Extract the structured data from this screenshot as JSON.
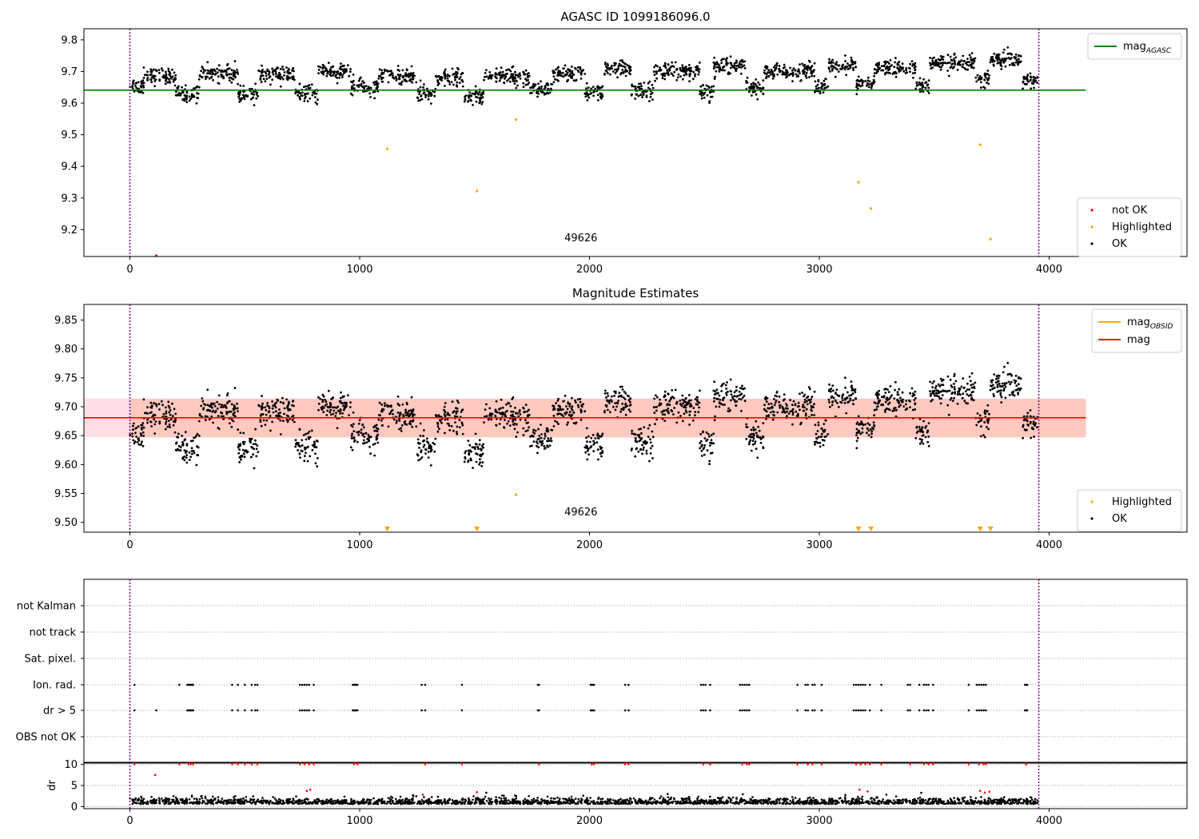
{
  "chart_data": [
    {
      "type": "scatter",
      "title": "AGASC ID 1099186096.0",
      "xlim": [
        -200,
        4600
      ],
      "ylim": [
        9.115,
        9.835
      ],
      "xticks": [
        "0",
        "1000",
        "2000",
        "3000",
        "4000"
      ],
      "xtick_values": [
        0,
        1000,
        2000,
        3000,
        4000
      ],
      "yticks": [
        "9.2",
        "9.3",
        "9.4",
        "9.5",
        "9.6",
        "9.7",
        "9.8"
      ],
      "ytick_values": [
        9.2,
        9.3,
        9.4,
        9.5,
        9.6,
        9.7,
        9.8
      ],
      "vlines": [
        0,
        3955
      ],
      "annotation": {
        "text": "49626",
        "x": 1980,
        "y": 9.15
      },
      "hline": {
        "name": "mag",
        "sub": "AGASC",
        "y": 9.641,
        "x": [
          -200,
          4160
        ],
        "color": "#008000"
      },
      "legend_lines": [
        {
          "label": "mag",
          "sub": "AGASC",
          "color": "#008000"
        }
      ],
      "legend_points": [
        {
          "label": "not OK",
          "color": "#ff0000"
        },
        {
          "label": "Highlighted",
          "color": "#ffa500"
        },
        {
          "label": "OK",
          "color": "#000000"
        }
      ],
      "highlighted": [
        [
          1120,
          9.455
        ],
        [
          1510,
          9.322
        ],
        [
          1680,
          9.548
        ],
        [
          3170,
          9.35
        ],
        [
          3225,
          9.267
        ],
        [
          3700,
          9.468
        ],
        [
          3745,
          9.17
        ]
      ],
      "not_ok": [
        [
          115,
          9.115
        ]
      ],
      "ok_color": "#000000"
    },
    {
      "type": "scatter",
      "title": "Magnitude Estimates",
      "xlim": [
        -200,
        4600
      ],
      "ylim": [
        9.483,
        9.877
      ],
      "xticks": [
        "0",
        "1000",
        "2000",
        "3000",
        "4000"
      ],
      "xtick_values": [
        0,
        1000,
        2000,
        3000,
        4000
      ],
      "yticks": [
        "9.50",
        "9.55",
        "9.60",
        "9.65",
        "9.70",
        "9.75",
        "9.80",
        "9.85"
      ],
      "ytick_values": [
        9.5,
        9.55,
        9.6,
        9.65,
        9.7,
        9.75,
        9.8,
        9.85
      ],
      "vlines": [
        0,
        3955
      ],
      "annotation": {
        "text": "49626",
        "x": 1980,
        "y": 9.505
      },
      "band": {
        "y0": 9.647,
        "y1": 9.714,
        "x": [
          -200,
          4160
        ]
      },
      "hline": {
        "name": "mag",
        "y": 9.681,
        "x": [
          -200,
          4160
        ],
        "color": "#ff0000"
      },
      "legend_lines": [
        {
          "label": "mag",
          "sub": "OBSID",
          "color": "#ffa500"
        },
        {
          "label": "mag",
          "sub": "",
          "color": "#ff0000"
        }
      ],
      "legend_points": [
        {
          "label": "Highlighted",
          "color": "#ffa500"
        },
        {
          "label": "OK",
          "color": "#000000"
        }
      ],
      "highlighted": [
        [
          1680,
          9.548
        ]
      ],
      "offscale_markers": [
        1120,
        1510,
        3170,
        3225,
        3700,
        3745
      ],
      "ok_color": "#000000"
    },
    {
      "type": "scatter",
      "title": "",
      "xlim": [
        -200,
        4600
      ],
      "categories": [
        "not Kalman",
        "not track",
        "Sat. pixel.",
        "Ion. rad.",
        "dr > 5",
        "OBS not OK"
      ],
      "flag_x": [
        20,
        215,
        250,
        255,
        260,
        265,
        270,
        275,
        445,
        470,
        500,
        530,
        545,
        555,
        740,
        750,
        760,
        770,
        780,
        800,
        970,
        975,
        980,
        985,
        990,
        1270,
        1285,
        1445,
        1775,
        1780,
        2005,
        2010,
        2015,
        2020,
        2155,
        2170,
        2485,
        2495,
        2505,
        2525,
        2655,
        2665,
        2675,
        2685,
        2695,
        2905,
        2940,
        2950,
        2970,
        2980,
        3010,
        3150,
        3160,
        3170,
        3180,
        3190,
        3200,
        3220,
        3270,
        3385,
        3395,
        3435,
        3455,
        3465,
        3475,
        3495,
        3650,
        3685,
        3695,
        3705,
        3715,
        3725,
        3895,
        3900,
        3905
      ],
      "dr_ylim": [
        -0.5,
        10.5
      ],
      "dr_yticks": [
        "0",
        "5",
        "10"
      ],
      "dr_ytick_values": [
        0,
        5,
        10
      ],
      "dr_ylabel": "dr",
      "dr_capped": [
        20,
        215,
        255,
        265,
        275,
        445,
        470,
        500,
        530,
        555,
        740,
        760,
        780,
        800,
        975,
        990,
        1285,
        1445,
        1780,
        2010,
        2020,
        2155,
        2170,
        2495,
        2525,
        2665,
        2685,
        2695,
        2905,
        2950,
        2970,
        3010,
        3160,
        3180,
        3200,
        3220,
        3270,
        3395,
        3455,
        3475,
        3495,
        3650,
        3695,
        3715,
        3725,
        3900
      ],
      "dr_red_mid": [
        [
          110,
          7.5
        ],
        [
          770,
          3.7
        ],
        [
          785,
          4.0
        ],
        [
          1275,
          2.8
        ],
        [
          1510,
          3.4
        ],
        [
          3175,
          4.0
        ],
        [
          3210,
          3.6
        ],
        [
          3700,
          3.7
        ],
        [
          3720,
          3.3
        ],
        [
          3740,
          3.5
        ]
      ],
      "xticks": [
        "0",
        "1000",
        "2000",
        "3000",
        "4000"
      ],
      "xtick_values": [
        0,
        1000,
        2000,
        3000,
        4000
      ],
      "vlines": [
        0,
        3955
      ]
    }
  ]
}
